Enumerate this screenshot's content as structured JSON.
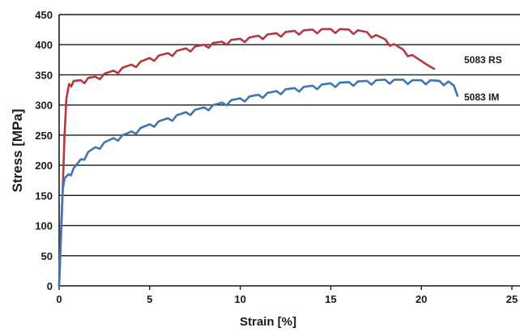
{
  "chart_data": {
    "type": "line",
    "title": "",
    "xlabel": "Strain [%]",
    "ylabel": "Stress [MPa]",
    "xlim": [
      0,
      25
    ],
    "ylim": [
      0,
      450
    ],
    "xticks": [
      "0",
      "5",
      "10",
      "15",
      "20",
      "25"
    ],
    "yticks": [
      "0",
      "50",
      "100",
      "150",
      "200",
      "250",
      "300",
      "350",
      "400",
      "450"
    ],
    "grid": "horizontal",
    "series": [
      {
        "name": "5083 RS",
        "color": "#b5373f",
        "x": [
          0,
          0.15,
          0.3,
          0.4,
          0.55,
          0.8,
          1.2,
          1.6,
          2.0,
          2.5,
          3.0,
          3.5,
          4.0,
          4.5,
          5.0,
          5.5,
          6.0,
          6.5,
          7.0,
          7.5,
          8.0,
          8.5,
          9.0,
          9.5,
          10.0,
          10.5,
          11.0,
          11.5,
          12.0,
          12.5,
          13.0,
          13.5,
          14.0,
          14.5,
          15.0,
          15.5,
          16.0,
          16.5,
          17.0,
          17.5,
          18.0,
          18.5,
          19.0,
          19.5,
          20.0,
          20.3,
          20.7
        ],
        "y": [
          0,
          120,
          250,
          310,
          335,
          340,
          341,
          345,
          347,
          352,
          357,
          362,
          367,
          372,
          378,
          382,
          386,
          390,
          394,
          397,
          400,
          403,
          405,
          408,
          410,
          412,
          415,
          417,
          419,
          421,
          423,
          424,
          425,
          426,
          426,
          426,
          425,
          424,
          421,
          416,
          409,
          401,
          392,
          383,
          373,
          367,
          360
        ]
      },
      {
        "name": "5083 IM",
        "color": "#3a77b6",
        "x": [
          0,
          0.1,
          0.2,
          0.3,
          0.5,
          0.8,
          1.2,
          1.6,
          2.0,
          2.5,
          3.0,
          3.5,
          4.0,
          4.5,
          5.0,
          5.5,
          6.0,
          6.5,
          7.0,
          7.5,
          8.0,
          8.5,
          9.0,
          9.5,
          10.0,
          10.5,
          11.0,
          11.5,
          12.0,
          12.5,
          13.0,
          13.5,
          14.0,
          14.5,
          15.0,
          15.5,
          16.0,
          16.5,
          17.0,
          17.5,
          18.0,
          18.5,
          19.0,
          19.5,
          20.0,
          20.5,
          21.0,
          21.5,
          21.8,
          22.0
        ],
        "y": [
          0,
          90,
          160,
          178,
          185,
          195,
          210,
          222,
          230,
          238,
          245,
          250,
          256,
          262,
          268,
          273,
          278,
          283,
          288,
          292,
          296,
          300,
          304,
          308,
          311,
          314,
          317,
          320,
          323,
          326,
          328,
          330,
          332,
          334,
          336,
          337,
          338,
          339,
          340,
          341,
          342,
          342,
          342,
          341,
          341,
          341,
          340,
          339,
          332,
          315
        ]
      }
    ]
  }
}
